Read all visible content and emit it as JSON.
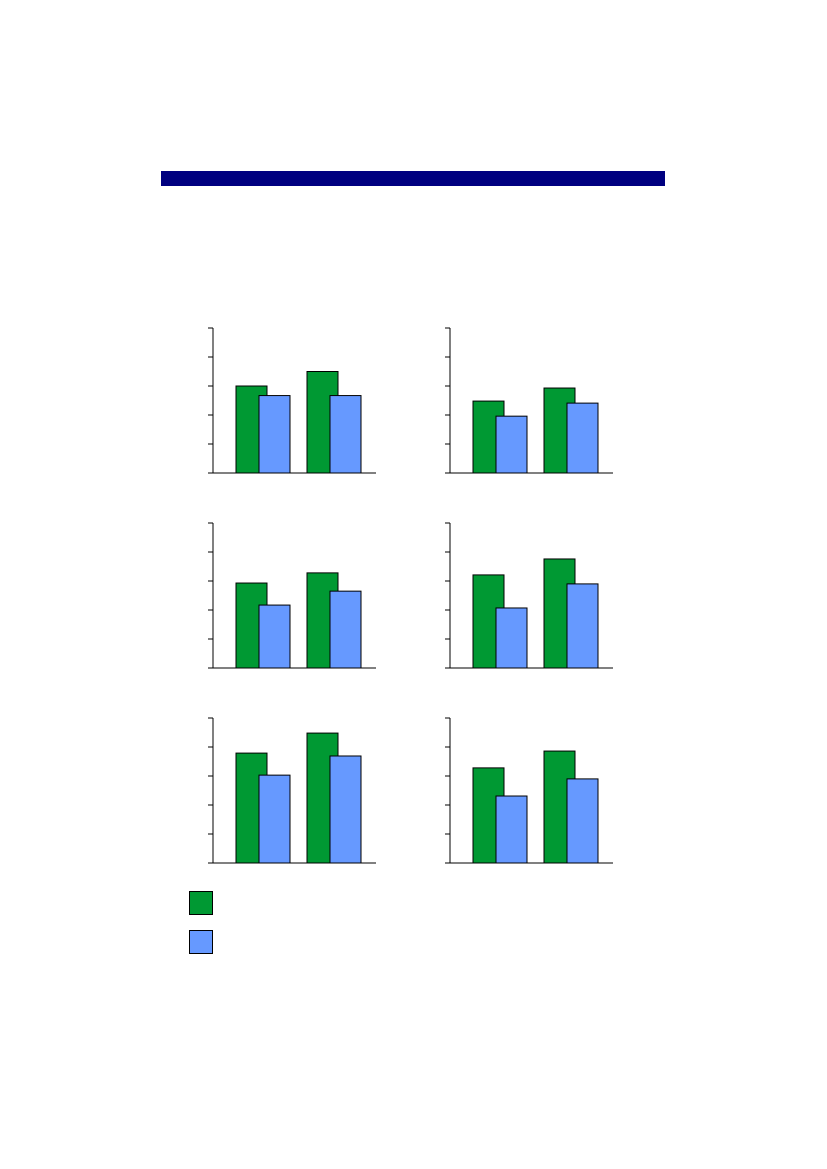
{
  "page": {
    "header_bar_color": "#000080"
  },
  "legend": [
    {
      "label": "",
      "color": "#009933"
    },
    {
      "label": "",
      "color": "#6699ff"
    }
  ],
  "chart_data": [
    {
      "type": "bar",
      "categories": [
        "",
        ""
      ],
      "ylim": [
        0,
        5
      ],
      "grid": false,
      "series": [
        {
          "values": [
            3.0,
            3.5
          ],
          "color": "#009933"
        },
        {
          "values": [
            2.67,
            2.67
          ],
          "color": "#6699ff"
        }
      ]
    },
    {
      "type": "bar",
      "categories": [
        "",
        ""
      ],
      "ylim": [
        0,
        5
      ],
      "grid": false,
      "series": [
        {
          "values": [
            2.48,
            2.93
          ],
          "color": "#009933"
        },
        {
          "values": [
            1.96,
            2.41
          ],
          "color": "#6699ff"
        }
      ]
    },
    {
      "type": "bar",
      "categories": [
        "",
        ""
      ],
      "ylim": [
        0,
        5
      ],
      "grid": false,
      "series": [
        {
          "values": [
            2.93,
            3.28
          ],
          "color": "#009933"
        },
        {
          "values": [
            2.17,
            2.65
          ],
          "color": "#6699ff"
        }
      ]
    },
    {
      "type": "bar",
      "categories": [
        "",
        ""
      ],
      "ylim": [
        0,
        5
      ],
      "grid": false,
      "series": [
        {
          "values": [
            3.21,
            3.76
          ],
          "color": "#009933"
        },
        {
          "values": [
            2.07,
            2.9
          ],
          "color": "#6699ff"
        }
      ]
    },
    {
      "type": "bar",
      "categories": [
        "",
        ""
      ],
      "ylim": [
        0,
        5
      ],
      "grid": false,
      "series": [
        {
          "values": [
            3.79,
            4.48
          ],
          "color": "#009933"
        },
        {
          "values": [
            3.03,
            3.69
          ],
          "color": "#6699ff"
        }
      ]
    },
    {
      "type": "bar",
      "categories": [
        "",
        ""
      ],
      "ylim": [
        0,
        5
      ],
      "grid": false,
      "series": [
        {
          "values": [
            3.28,
            3.86
          ],
          "color": "#009933"
        },
        {
          "values": [
            2.31,
            2.9
          ],
          "color": "#6699ff"
        }
      ]
    }
  ]
}
